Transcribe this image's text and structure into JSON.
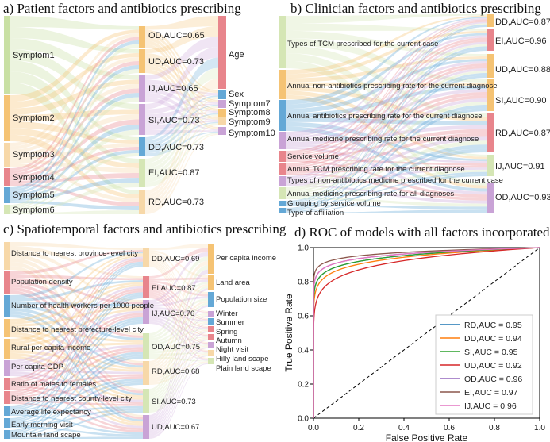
{
  "colors": {
    "green": "#c9e0a4",
    "orange": "#f5c374",
    "pink": "#e8858c",
    "blue": "#64a8d6",
    "purple": "#c9a3d6",
    "peach": "#f7d8a8",
    "lightgreen": "#d5e6b5"
  },
  "panels": {
    "a_title": "a) Patient factors and antibiotics prescribing",
    "b_title": "b) Clinician factors and antibiotics prescribing",
    "c_title": "c) Spatiotemporal factors and antibiotics prescribing",
    "d_title": "d) ROC of models with all factors incorporated"
  },
  "panel_a": {
    "left": [
      "Symptom1",
      "Symptom2",
      "Symptom3",
      "Symptom4",
      "Symptom5",
      "Symptom6"
    ],
    "mid": [
      "OD,AUC=0.65",
      "UD,AUC=0.73",
      "IJ,AUC=0.65",
      "SI,AUC=0.73",
      "DD,AUC=0.73",
      "EI,AUC=0.87",
      "RD,AUC=0.73"
    ],
    "right": [
      "Age",
      "Sex",
      "Symptom7",
      "Symptom8",
      "Symptom9",
      "Symptom10"
    ]
  },
  "panel_b": {
    "left": [
      "Types of TCM prescribed for the current case",
      "Annual non-antibiotics prescribing rate for the current diagnose",
      "Annual antibiotics prescribing rate for the current diagnose",
      "Annual medicine prescribing rate for the current diagnose",
      "Service volume",
      "Annual TCM prescribing rate for the current diagnose",
      "Types of non-antibiotics medicine prescribed for the current case",
      "Annual medicine prescribing rate for all diagnoses",
      "Grouping by service volume",
      "Type of affiliation"
    ],
    "right": [
      "DD,AUC=0.87",
      "EI,AUC=0.96",
      "UD,AUC=0.88",
      "SI,AUC=0.90",
      "RD,AUC=0.87",
      "IJ,AUC=0.91",
      "OD,AUC=0.93"
    ]
  },
  "panel_c": {
    "left": [
      "Distance to nearest province-level city",
      "Population density",
      "Number of health workers per 1000 people",
      "Distance to nearest prefecture-level city",
      "Rural per capita income",
      "Per capita GDP",
      "Ratio of males to females",
      "Distance to nearest county-level city",
      "Average life expectancy",
      "Early morning visit",
      "Mountain land scape"
    ],
    "mid": [
      "DD,AUC=0.69",
      "EI,AUC=0.87",
      "IJ,AUC=0.76",
      "OD,AUC=0.75",
      "RD,AUC=0.68",
      "SI,AUC=0.73",
      "UD,AUC=0.67"
    ],
    "right": [
      "Per capita income",
      "Land area",
      "Population size",
      "Winter",
      "Summer",
      "Spring",
      "Autumn",
      "Night visit",
      "Hilly land scape",
      "Plain land scape"
    ]
  },
  "chart_data": {
    "type": "line",
    "title": "d) ROC of models with all factors incorporated",
    "xlabel": "False Positive Rate",
    "ylabel": "True Positive Rate",
    "xlim": [
      0,
      1
    ],
    "ylim": [
      0,
      1
    ],
    "xticks": [
      "0.0",
      "0.2",
      "0.4",
      "0.6",
      "0.8",
      "1.0"
    ],
    "yticks": [
      "0.0",
      "0.2",
      "0.4",
      "0.6",
      "0.8",
      "1.0"
    ],
    "legend_position": "lower-right",
    "series": [
      {
        "name": "RD,AUC = 0.95",
        "color": "#1f77b4",
        "auc": 0.95
      },
      {
        "name": "DD,AUC = 0.94",
        "color": "#ff7f0e",
        "auc": 0.94
      },
      {
        "name": "SI,AUC = 0.95",
        "color": "#2ca02c",
        "auc": 0.95
      },
      {
        "name": "UD,AUC = 0.92",
        "color": "#d62728",
        "auc": 0.92
      },
      {
        "name": "OD,AUC = 0.96",
        "color": "#9467bd",
        "auc": 0.96
      },
      {
        "name": "EI,AUC = 0.97",
        "color": "#8c564b",
        "auc": 0.97
      },
      {
        "name": "IJ,AUC = 0.96",
        "color": "#e377c2",
        "auc": 0.96
      }
    ]
  }
}
